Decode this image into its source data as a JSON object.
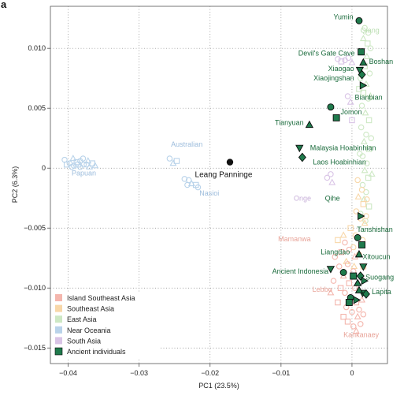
{
  "chart_data": {
    "type": "scatter",
    "panel_label": "a",
    "xlabel": "PC1 (23.5%)",
    "ylabel": "PC2 (6.3%)",
    "xlim": [
      -0.0425,
      0.005
    ],
    "ylim": [
      -0.0163,
      0.0135
    ],
    "x_ticks": [
      -0.04,
      -0.03,
      -0.02,
      -0.01,
      0
    ],
    "x_tick_labels": [
      "−0.04",
      "−0.03",
      "−0.02",
      "−0.01",
      "0"
    ],
    "y_ticks": [
      0.01,
      0.005,
      0,
      -0.005,
      -0.01,
      -0.015
    ],
    "y_tick_labels": [
      "0.010",
      "0.005",
      "0",
      "−0.005",
      "−0.010",
      "−0.015"
    ],
    "grid": "dotted",
    "legend_position": "bottom-left",
    "colors": {
      "island_se_asia": "#f4b6ad",
      "se_asia": "#f8d7a8",
      "east_asia": "#cde8c4",
      "near_oceania": "#b9d3ea",
      "south_asia": "#d9c4e6",
      "ancient": "#1f7a4c",
      "ancient_text": "#1a6b3c",
      "highlight": "#111111"
    },
    "legend": [
      {
        "label": "Island Southeast Asia",
        "color": "#f4b6ad"
      },
      {
        "label": "Southeast Asia",
        "color": "#f8d7a8"
      },
      {
        "label": "East Asia",
        "color": "#cde8c4"
      },
      {
        "label": "Near Oceania",
        "color": "#b9d3ea"
      },
      {
        "label": "South Asia",
        "color": "#d9c4e6"
      },
      {
        "label": "Ancient individuals",
        "color": "#1f7a4c"
      }
    ],
    "population_labels": [
      {
        "text": "Qiang",
        "x": 0.0012,
        "y": 0.0113,
        "color": "#b9ddb0",
        "anchor": "start"
      },
      {
        "text": "Australian",
        "x": -0.0255,
        "y": 0.0018,
        "color": "#9cbcdc",
        "anchor": "start"
      },
      {
        "text": "Papuan",
        "x": -0.0395,
        "y": -0.0006,
        "color": "#9cbcdc",
        "anchor": "start"
      },
      {
        "text": "Nasioi",
        "x": -0.0215,
        "y": -0.0023,
        "color": "#9cbcdc",
        "anchor": "start"
      },
      {
        "text": "Onge",
        "x": -0.0082,
        "y": -0.0027,
        "color": "#c6aed8",
        "anchor": "start"
      },
      {
        "text": "Mamanwa",
        "x": -0.0058,
        "y": -0.0061,
        "color": "#e8a398",
        "anchor": "end"
      },
      {
        "text": "Lebbo",
        "x": -0.0028,
        "y": -0.0103,
        "color": "#e8a398",
        "anchor": "end"
      },
      {
        "text": "Kankanaey",
        "x": -0.0012,
        "y": -0.0141,
        "color": "#e8a398",
        "anchor": "start"
      }
    ],
    "ancient_labels": [
      {
        "text": "Yumin",
        "x": -0.0026,
        "y": 0.0124,
        "anchor": "start"
      },
      {
        "text": "Devil's Gate Cave",
        "x": 0.0004,
        "y": 0.0094,
        "anchor": "end"
      },
      {
        "text": "Boshan",
        "x": 0.0024,
        "y": 0.0087,
        "anchor": "start"
      },
      {
        "text": "Xiaogao",
        "x": 0.0003,
        "y": 0.0081,
        "anchor": "end"
      },
      {
        "text": "Xiaojingshan",
        "x": 0.0003,
        "y": 0.0073,
        "anchor": "end"
      },
      {
        "text": "Bianbian",
        "x": 0.0004,
        "y": 0.0057,
        "anchor": "start"
      },
      {
        "text": "Jomon",
        "x": -0.0016,
        "y": 0.0045,
        "anchor": "start"
      },
      {
        "text": "Tianyuan",
        "x": -0.0068,
        "y": 0.0036,
        "anchor": "end"
      },
      {
        "text": "Malaysia Hoabinhian",
        "x": -0.0059,
        "y": 0.0015,
        "anchor": "start"
      },
      {
        "text": "Laos Hoabinhian",
        "x": -0.0055,
        "y": 0.0003,
        "anchor": "start"
      },
      {
        "text": "Qihe",
        "x": -0.0017,
        "y": -0.0027,
        "anchor": "end"
      },
      {
        "text": "Tanshishan",
        "x": 0.0007,
        "y": -0.0053,
        "anchor": "start"
      },
      {
        "text": "Liangdao",
        "x": -0.0003,
        "y": -0.0072,
        "anchor": "end"
      },
      {
        "text": "Xitoucun",
        "x": 0.0015,
        "y": -0.0076,
        "anchor": "start"
      },
      {
        "text": "Ancient Indonesia",
        "x": -0.0033,
        "y": -0.0088,
        "anchor": "end"
      },
      {
        "text": "Suogang",
        "x": 0.0019,
        "y": -0.0093,
        "anchor": "start"
      },
      {
        "text": "Lapita",
        "x": 0.0028,
        "y": -0.0105,
        "anchor": "start"
      }
    ],
    "highlight": {
      "label": "Leang Panninge",
      "x": -0.0172,
      "y": 0.0005
    },
    "series": [
      {
        "name": "Near Oceania",
        "color": "#b9d3ea",
        "points": [
          [
            -0.0405,
            0.0007
          ],
          [
            -0.0398,
            0.0004
          ],
          [
            -0.0393,
            0.0008
          ],
          [
            -0.0388,
            0.0005
          ],
          [
            -0.0383,
            0.0006
          ],
          [
            -0.0378,
            0.0003
          ],
          [
            -0.0372,
            0.0006
          ],
          [
            -0.0366,
            0.0004
          ],
          [
            -0.0395,
            0.0001
          ],
          [
            -0.0383,
            0.0001
          ],
          [
            -0.037,
            0.0001
          ],
          [
            -0.0402,
            0.0003
          ],
          [
            -0.0392,
            0.0002
          ],
          [
            -0.0379,
            0.0008
          ],
          [
            -0.0362,
            0.0002
          ],
          [
            -0.0386,
            0.0003
          ],
          [
            -0.0374,
            0.0003
          ],
          [
            -0.0257,
            0.0008
          ],
          [
            -0.0252,
            0.0004
          ],
          [
            -0.0247,
            0.0006
          ],
          [
            -0.0236,
            -0.0009
          ],
          [
            -0.023,
            -0.001
          ],
          [
            -0.0226,
            -0.0013
          ],
          [
            -0.022,
            -0.0014
          ],
          [
            -0.0232,
            -0.0014
          ],
          [
            -0.0217,
            -0.0016
          ]
        ]
      },
      {
        "name": "East Asia",
        "color": "#cde8c4",
        "points": [
          [
            0.0018,
            0.0117
          ],
          [
            0.0023,
            0.0113
          ],
          [
            0.0016,
            0.0108
          ],
          [
            0.0022,
            0.0104
          ],
          [
            0.0026,
            0.01
          ],
          [
            0.0014,
            0.0097
          ],
          [
            0.0021,
            0.0093
          ],
          [
            0.0018,
            0.0085
          ],
          [
            0.0025,
            0.0079
          ],
          [
            0.0012,
            0.0075
          ],
          [
            0.002,
            0.007
          ],
          [
            0.0016,
            0.0063
          ],
          [
            0.0023,
            0.0058
          ],
          [
            0.0014,
            0.0052
          ],
          [
            0.0019,
            0.0046
          ],
          [
            0.0024,
            0.004
          ],
          [
            0.0013,
            0.0034
          ],
          [
            0.002,
            0.0028
          ],
          [
            0.0017,
            0.0022
          ],
          [
            0.0024,
            0.0016
          ],
          [
            0.0015,
            0.001
          ],
          [
            0.0021,
            0.0004
          ],
          [
            0.0018,
            -0.0002
          ],
          [
            0.0023,
            -0.0008
          ],
          [
            0.0015,
            -0.0014
          ],
          [
            0.002,
            -0.002
          ],
          [
            0.0017,
            -0.0026
          ],
          [
            0.0024,
            -0.0032
          ],
          [
            0.0012,
            -0.0038
          ],
          [
            0.0019,
            -0.0044
          ],
          [
            0.0026,
            0.006
          ],
          [
            0.001,
            0.0066
          ],
          [
            0.0027,
            0.0025
          ],
          [
            0.0011,
            0.0012
          ],
          [
            0.0028,
            -0.0005
          ]
        ]
      },
      {
        "name": "South Asia",
        "color": "#d9c4e6",
        "points": [
          [
            -0.0005,
            0.0092
          ],
          [
            -0.001,
            0.009
          ],
          [
            0.0,
            0.0088
          ],
          [
            -0.0015,
            0.0089
          ],
          [
            -0.002,
            0.0091
          ],
          [
            -0.0006,
            0.006
          ],
          [
            -0.0002,
            0.0055
          ],
          [
            0.0,
            0.004
          ],
          [
            -0.003,
            -0.0005
          ],
          [
            -0.0035,
            -0.0008
          ],
          [
            -0.0028,
            -0.0012
          ]
        ]
      },
      {
        "name": "Southeast Asia",
        "color": "#f8d7a8",
        "points": [
          [
            0.0008,
            -0.001
          ],
          [
            0.0014,
            -0.0018
          ],
          [
            0.0009,
            -0.0024
          ],
          [
            0.0016,
            -0.003
          ],
          [
            0.0006,
            -0.0036
          ],
          [
            0.0012,
            -0.0042
          ],
          [
            0.0018,
            -0.0046
          ],
          [
            -0.0002,
            -0.005
          ],
          [
            0.0005,
            -0.0056
          ],
          [
            0.0015,
            -0.006
          ],
          [
            -0.0012,
            -0.0056
          ],
          [
            -0.002,
            -0.006
          ],
          [
            0.0002,
            -0.0066
          ],
          [
            0.001,
            -0.0072
          ],
          [
            -0.0008,
            -0.0078
          ],
          [
            0.0016,
            -0.0082
          ],
          [
            0.002,
            -0.004
          ],
          [
            0.0021,
            -0.0026
          ],
          [
            0.0003,
            -0.0082
          ]
        ]
      },
      {
        "name": "Island Southeast Asia",
        "color": "#f4b6ad",
        "points": [
          [
            -0.001,
            -0.0062
          ],
          [
            -0.0004,
            -0.0068
          ],
          [
            0.0004,
            -0.0074
          ],
          [
            -0.0015,
            -0.007
          ],
          [
            -0.0006,
            -0.008
          ],
          [
            0.0002,
            -0.0086
          ],
          [
            -0.0012,
            -0.009
          ],
          [
            -0.0004,
            -0.0096
          ],
          [
            0.0004,
            -0.01
          ],
          [
            -0.001,
            -0.0104
          ],
          [
            -0.0002,
            -0.0108
          ],
          [
            0.0006,
            -0.0112
          ],
          [
            -0.0008,
            -0.0116
          ],
          [
            0.0,
            -0.012
          ],
          [
            0.0008,
            -0.0124
          ],
          [
            -0.0006,
            -0.0128
          ],
          [
            0.0002,
            -0.0132
          ],
          [
            0.001,
            -0.0118
          ],
          [
            0.0014,
            -0.011
          ],
          [
            -0.0016,
            -0.01
          ],
          [
            -0.0018,
            -0.0082
          ],
          [
            -0.0024,
            -0.0074
          ],
          [
            -0.003,
            -0.0104
          ],
          [
            -0.002,
            -0.0112
          ],
          [
            0.0012,
            -0.013
          ],
          [
            0.0016,
            -0.0122
          ],
          [
            0.0006,
            -0.0136
          ],
          [
            -0.0012,
            -0.0124
          ],
          [
            0.0018,
            -0.0104
          ],
          [
            -0.0026,
            -0.0094
          ]
        ]
      },
      {
        "name": "Ancient individuals",
        "color": "#1f7a4c",
        "points": [
          [
            0.001,
            0.0123
          ],
          [
            0.0013,
            0.0097
          ],
          [
            0.0016,
            0.0088
          ],
          [
            0.0011,
            0.0082
          ],
          [
            0.0014,
            0.0078
          ],
          [
            0.0015,
            0.0069
          ],
          [
            -0.003,
            0.0051
          ],
          [
            -0.0022,
            0.0042
          ],
          [
            -0.006,
            0.0036
          ],
          [
            -0.0074,
            0.0017
          ],
          [
            -0.007,
            0.0009
          ],
          [
            0.0012,
            -0.004
          ],
          [
            0.0008,
            -0.0058
          ],
          [
            0.0014,
            -0.0064
          ],
          [
            0.001,
            -0.0072
          ],
          [
            0.0016,
            -0.0082
          ],
          [
            0.0012,
            -0.009
          ],
          [
            0.0017,
            -0.0094
          ],
          [
            -0.0012,
            -0.0087
          ],
          [
            0.0002,
            -0.009
          ],
          [
            0.0008,
            -0.0096
          ],
          [
            0.0015,
            -0.0104
          ],
          [
            0.002,
            -0.0105
          ],
          [
            0.0006,
            -0.011
          ],
          [
            -0.0002,
            -0.0108
          ],
          [
            -0.0004,
            -0.0112
          ],
          [
            0.001,
            -0.0102
          ],
          [
            -0.003,
            -0.0084
          ]
        ]
      }
    ]
  }
}
